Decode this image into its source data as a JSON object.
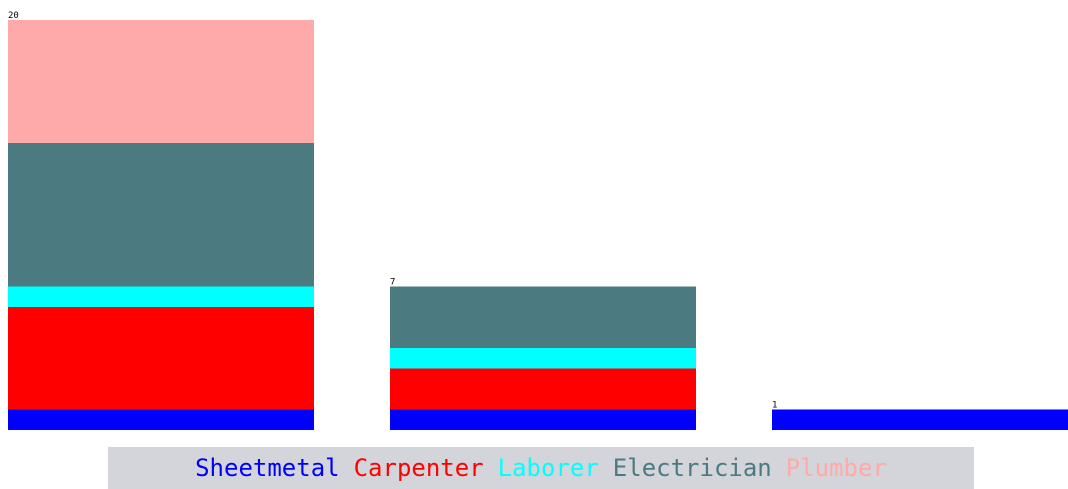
{
  "chart_data": {
    "type": "bar",
    "stacked": true,
    "categories": [
      "",
      "",
      ""
    ],
    "totals": [
      20,
      7,
      1
    ],
    "ylim": [
      0,
      20
    ],
    "grid": false,
    "legend_position": "bottom",
    "series": [
      {
        "name": "Sheetmetal",
        "color": "#0000ff",
        "values": [
          1,
          1,
          1
        ]
      },
      {
        "name": "Carpenter",
        "color": "#ff0000",
        "values": [
          5,
          2,
          0
        ]
      },
      {
        "name": "Laborer",
        "color": "#00ffff",
        "values": [
          1,
          1,
          0
        ]
      },
      {
        "name": "Electrician",
        "color": "#4b7b80",
        "values": [
          7,
          3,
          0
        ]
      },
      {
        "name": "Plumber",
        "color": "#ffaaaa",
        "values": [
          6,
          0,
          0
        ]
      }
    ]
  }
}
